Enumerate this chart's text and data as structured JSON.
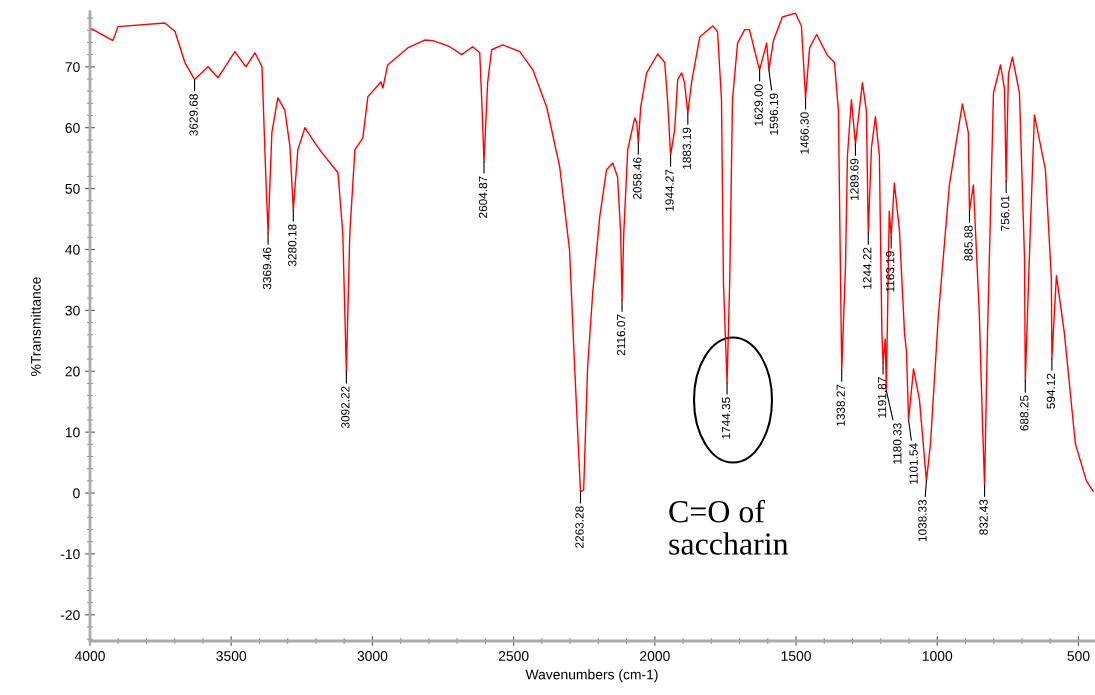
{
  "chart_data": {
    "type": "line",
    "xlabel": "Wavenumbers (cm-1)",
    "ylabel": "%Transmittance",
    "xlim": [
      4000,
      445
    ],
    "ylim": [
      -24.3,
      79
    ],
    "xticks": [
      4000,
      3500,
      3000,
      2500,
      2000,
      1500,
      1000,
      500
    ],
    "yticks": [
      -20,
      -10,
      0,
      10,
      20,
      30,
      40,
      50,
      60,
      70
    ],
    "series": [
      {
        "color": "#ff0000",
        "x": [
          4000,
          3919,
          3901,
          3735,
          3699,
          3664,
          3629.68,
          3582,
          3547,
          3487,
          3448,
          3416,
          3391,
          3378,
          3369.46,
          3356,
          3335,
          3310,
          3292,
          3280.18,
          3264,
          3239,
          3204,
          3179,
          3122,
          3105,
          3092.22,
          3080,
          3062,
          3034,
          3016,
          2970,
          2963,
          2946,
          2875,
          2815,
          2786,
          2726,
          2684,
          2645,
          2620,
          2613,
          2604.87,
          2592,
          2578,
          2539,
          2478,
          2432,
          2383,
          2337,
          2302,
          2284,
          2263.28,
          2252,
          2238,
          2220,
          2195,
          2171,
          2149,
          2132,
          2121,
          2116.07,
          2110,
          2096,
          2071,
          2064,
          2058.46,
          2050,
          2029,
          1990,
          1965,
          1955,
          1944.27,
          1930,
          1919,
          1905,
          1895,
          1883.19,
          1870,
          1841,
          1795,
          1778,
          1764,
          1757,
          1744.35,
          1735,
          1725,
          1707,
          1682,
          1665,
          1636,
          1629.0,
          1604,
          1596.19,
          1580,
          1548,
          1502,
          1481,
          1466.3,
          1452,
          1427,
          1388,
          1364,
          1350,
          1343,
          1338.27,
          1325,
          1318,
          1304,
          1289.69,
          1265,
          1251,
          1244.22,
          1233,
          1219,
          1205,
          1196,
          1191.87,
          1184,
          1180.33,
          1170,
          1163.19,
          1152,
          1134,
          1116,
          1109,
          1101.54,
          1084,
          1063,
          1038.33,
          1024,
          996,
          957,
          911,
          890,
          885.88,
          872,
          851,
          840,
          832.43,
          822,
          801,
          776,
          762,
          756.01,
          748,
          734,
          709,
          691,
          688.25,
          674,
          656,
          617,
          596,
          594.12,
          578,
          550,
          511,
          472,
          448
        ],
        "values": [
          76.4,
          74.3,
          76.6,
          77.2,
          75.8,
          70.7,
          67.9,
          70,
          68.2,
          72.5,
          70,
          72.3,
          70,
          52.6,
          42.7,
          59.2,
          64.9,
          62.9,
          56.9,
          46.5,
          56.4,
          60,
          57.5,
          55.9,
          52.6,
          42.7,
          19.9,
          42.7,
          56.4,
          58.3,
          65.1,
          67.5,
          66.5,
          70.3,
          73.1,
          74.4,
          74.3,
          73.3,
          72,
          73.3,
          72.3,
          64.6,
          54.4,
          67.4,
          72.8,
          73.6,
          72.5,
          69.5,
          63.4,
          53.6,
          39.9,
          20.7,
          0.2,
          0.5,
          20.7,
          32.9,
          45.4,
          53.1,
          54.2,
          51.9,
          42.7,
          31.7,
          42.7,
          56.4,
          61.6,
          60.8,
          57.5,
          63.4,
          69,
          72.1,
          70.7,
          64.6,
          55.5,
          59.6,
          67.9,
          69,
          67.4,
          62.4,
          67.4,
          74.9,
          76.7,
          75.8,
          64.6,
          34.5,
          18.1,
          34.5,
          64.6,
          73.9,
          76.1,
          76.1,
          70.7,
          69.5,
          73.9,
          69.5,
          74.3,
          78.2,
          78.8,
          76.7,
          64.9,
          73.1,
          75.3,
          71.8,
          70.7,
          62.8,
          37.1,
          20.2,
          37.1,
          55.4,
          64.6,
          57.3,
          67.4,
          62.8,
          42.7,
          56.7,
          61.8,
          55.4,
          26.3,
          21.4,
          25.3,
          16.8,
          46.3,
          42.1,
          50.9,
          43.2,
          26.3,
          23.2,
          12,
          20.4,
          15.3,
          2,
          8.1,
          29.2,
          50.6,
          63.9,
          59.2,
          46.3,
          50.6,
          29.2,
          11.7,
          1.3,
          26.3,
          65.7,
          70.3,
          66.4,
          51.2,
          68.8,
          71.6,
          65.7,
          38.5,
          18.4,
          38.5,
          62.1,
          53.1,
          35.3,
          22,
          35.7,
          26.3,
          8.1,
          2,
          0.3
        ]
      }
    ],
    "annotations": [
      {
        "text": "3629.68",
        "x": 3629.68,
        "y": 67.9
      },
      {
        "text": "3369.46",
        "x": 3369.46,
        "y": 42.7
      },
      {
        "text": "3280.18",
        "x": 3280.18,
        "y": 46.5
      },
      {
        "text": "3092.22",
        "x": 3092.22,
        "y": 19.9
      },
      {
        "text": "2604.87",
        "x": 2604.87,
        "y": 54.4
      },
      {
        "text": "2263.28",
        "x": 2263.28,
        "y": 0.2
      },
      {
        "text": "2116.07",
        "x": 2116.07,
        "y": 31.7
      },
      {
        "text": "2058.46",
        "x": 2058.46,
        "y": 57.5
      },
      {
        "text": "1944.27",
        "x": 1944.27,
        "y": 55.5
      },
      {
        "text": "1883.19",
        "x": 1883.19,
        "y": 62.4
      },
      {
        "text": "1744.35",
        "x": 1744.35,
        "y": 18.1
      },
      {
        "text": "1629.00",
        "x": 1629.0,
        "y": 69.5
      },
      {
        "text": "1596.19",
        "x": 1596.19,
        "y": 69.5
      },
      {
        "text": "1466.30",
        "x": 1466.3,
        "y": 64.9
      },
      {
        "text": "1338.27",
        "x": 1338.27,
        "y": 20.2
      },
      {
        "text": "1289.69",
        "x": 1289.69,
        "y": 57.3
      },
      {
        "text": "1244.22",
        "x": 1244.22,
        "y": 42.7
      },
      {
        "text": "1191.87",
        "x": 1191.87,
        "y": 21.4
      },
      {
        "text": "1180.33",
        "x": 1180.33,
        "y": 16.8
      },
      {
        "text": "1163.19",
        "x": 1163.19,
        "y": 42.1
      },
      {
        "text": "1101.54",
        "x": 1101.54,
        "y": 12
      },
      {
        "text": "1038.33",
        "x": 1038.33,
        "y": 2
      },
      {
        "text": "885.88",
        "x": 885.88,
        "y": 46.3
      },
      {
        "text": "832.43",
        "x": 832.43,
        "y": 1.3
      },
      {
        "text": "756.01",
        "x": 756.01,
        "y": 51.2
      },
      {
        "text": "688.25",
        "x": 688.25,
        "y": 18.4
      },
      {
        "text": "594.12",
        "x": 594.12,
        "y": 22
      },
      "C=O of\nsaccharin"
    ]
  }
}
